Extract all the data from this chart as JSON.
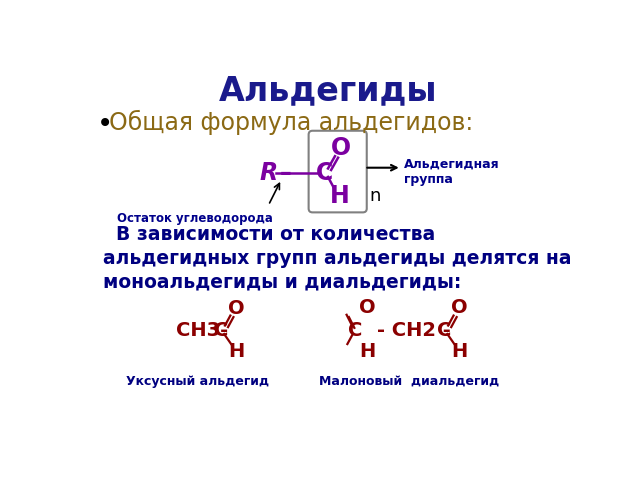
{
  "title": "Альдегиды",
  "title_color": "#1a1a8c",
  "title_fontsize": 24,
  "bullet_text": "Общая формула альдегидов:",
  "bullet_color": "#8B6914",
  "bullet_fontsize": 17,
  "body_text": "  В зависимости от количества\nальдегидных групп альдегиды делятся на\nмоноальдегиды и диальдегиды:",
  "body_color": "#000080",
  "body_fontsize": 13.5,
  "formula_color": "#7B00A0",
  "aldehyde_group_label": "Альдегидная\nгруппа",
  "aldehyde_group_color": "#00008B",
  "hydrocarbon_label": "Остаток углеводорода",
  "hydrocarbon_color": "#00008B",
  "red_color": "#8B0000",
  "label1": "Уксусный альдегид",
  "label2": "Малоновый  диальдегид",
  "label_color": "#000080",
  "background_color": "#ffffff"
}
